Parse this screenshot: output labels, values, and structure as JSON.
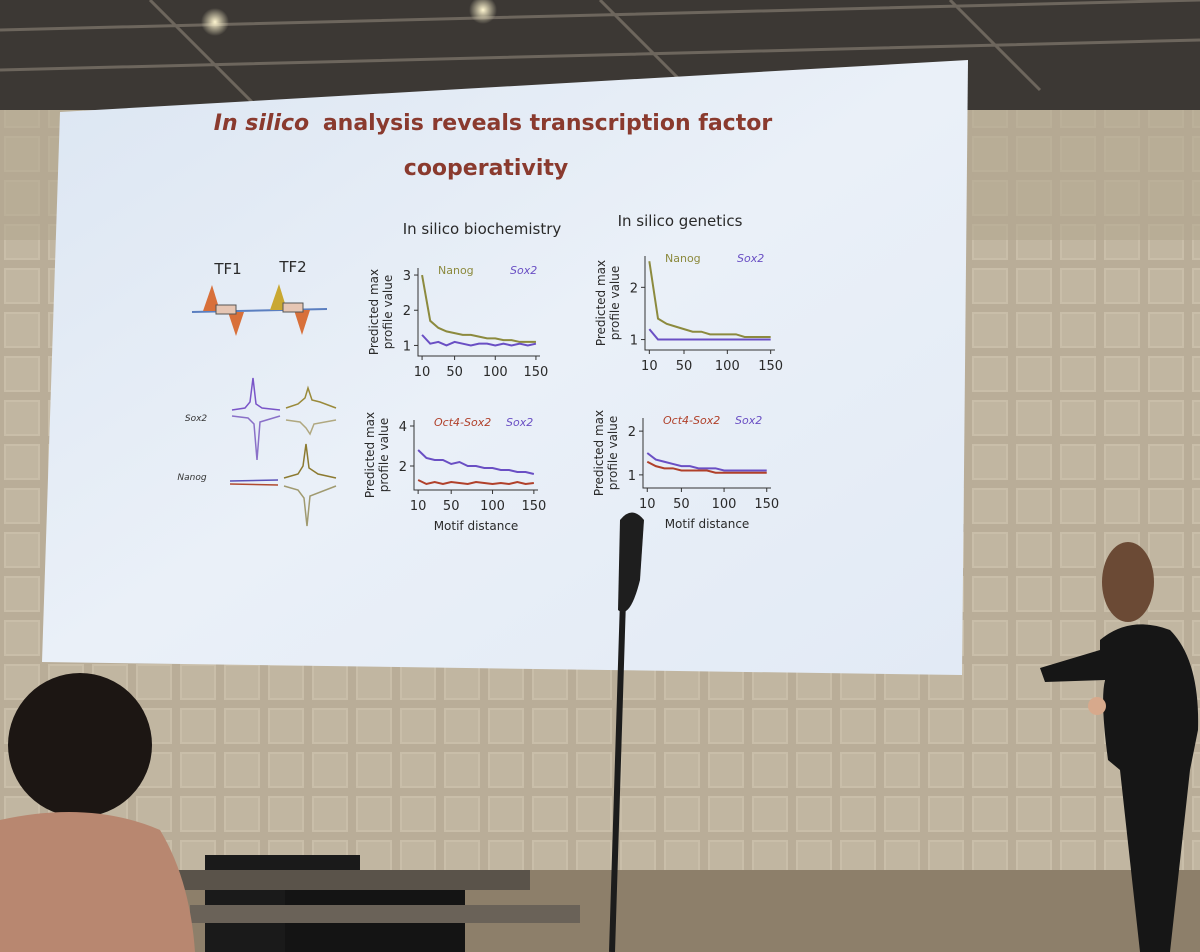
{
  "slide": {
    "title": {
      "italic": "In silico",
      "line1": "analysis reveals transcription factor",
      "line2": "cooperativity"
    },
    "headings": [
      "In silico biochemistry",
      "In silico genetics"
    ],
    "diagram": {
      "tf_labels": [
        "TF1",
        "TF2"
      ],
      "row_labels": [
        "Sox2",
        "Nanog"
      ]
    },
    "charts": [
      {
        "type": "line",
        "ylabel": [
          "Predicted max",
          "profile value"
        ],
        "x": [
          10,
          20,
          30,
          40,
          50,
          60,
          70,
          80,
          90,
          100,
          110,
          120,
          130,
          140,
          150
        ],
        "xlim": [
          5,
          155
        ],
        "xticks": [
          10,
          50,
          100,
          150
        ],
        "ylim": [
          0.7,
          3.2
        ],
        "yticks": [
          1,
          2,
          3
        ],
        "series": [
          {
            "name": "Nanog",
            "color": "#8c8a3e",
            "values": [
              3.0,
              1.7,
              1.5,
              1.4,
              1.35,
              1.3,
              1.3,
              1.25,
              1.2,
              1.2,
              1.15,
              1.15,
              1.1,
              1.1,
              1.1
            ]
          },
          {
            "name": "Sox2",
            "color": "#6a4fc4",
            "values": [
              1.3,
              1.05,
              1.1,
              1.0,
              1.1,
              1.05,
              1.0,
              1.05,
              1.05,
              1.0,
              1.05,
              1.0,
              1.05,
              1.0,
              1.05
            ]
          }
        ]
      },
      {
        "type": "line",
        "ylabel": [
          "Predicted max",
          "profile value"
        ],
        "x": [
          10,
          20,
          30,
          40,
          50,
          60,
          70,
          80,
          90,
          100,
          110,
          120,
          130,
          140,
          150
        ],
        "xlim": [
          5,
          155
        ],
        "xticks": [
          10,
          50,
          100,
          150
        ],
        "ylim": [
          0.8,
          2.6
        ],
        "yticks": [
          1,
          2
        ],
        "series": [
          {
            "name": "Nanog",
            "color": "#8c8a3e",
            "values": [
              2.5,
              1.4,
              1.3,
              1.25,
              1.2,
              1.15,
              1.15,
              1.1,
              1.1,
              1.1,
              1.1,
              1.05,
              1.05,
              1.05,
              1.05
            ]
          },
          {
            "name": "Sox2",
            "color": "#6a4fc4",
            "values": [
              1.2,
              1.0,
              1.0,
              1.0,
              1.0,
              1.0,
              1.0,
              1.0,
              1.0,
              1.0,
              1.0,
              1.0,
              1.0,
              1.0,
              1.0
            ]
          }
        ]
      },
      {
        "type": "line",
        "ylabel": [
          "Predicted max",
          "profile value"
        ],
        "xlabel": "Motif distance",
        "x": [
          10,
          20,
          30,
          40,
          50,
          60,
          70,
          80,
          90,
          100,
          110,
          120,
          130,
          140,
          150
        ],
        "xlim": [
          5,
          155
        ],
        "xticks": [
          10,
          50,
          100,
          150
        ],
        "ylim": [
          0.8,
          4.3
        ],
        "yticks": [
          2,
          4
        ],
        "series": [
          {
            "name": "Oct4-Sox2",
            "color": "#b0402a",
            "values": [
              1.3,
              1.1,
              1.2,
              1.1,
              1.2,
              1.15,
              1.1,
              1.2,
              1.15,
              1.1,
              1.15,
              1.1,
              1.2,
              1.1,
              1.15
            ]
          },
          {
            "name": "Sox2",
            "color": "#6a4fc4",
            "values": [
              2.8,
              2.4,
              2.3,
              2.3,
              2.1,
              2.2,
              2.0,
              2.0,
              1.9,
              1.9,
              1.8,
              1.8,
              1.7,
              1.7,
              1.6
            ]
          }
        ]
      },
      {
        "type": "line",
        "ylabel": [
          "Predicted max",
          "profile value"
        ],
        "xlabel": "Motif distance",
        "x": [
          10,
          20,
          30,
          40,
          50,
          60,
          70,
          80,
          90,
          100,
          110,
          120,
          130,
          140,
          150
        ],
        "xlim": [
          5,
          155
        ],
        "xticks": [
          10,
          50,
          100,
          150
        ],
        "ylim": [
          0.7,
          2.3
        ],
        "yticks": [
          1,
          2
        ],
        "series": [
          {
            "name": "Oct4-Sox2",
            "color": "#b0402a",
            "values": [
              1.3,
              1.2,
              1.15,
              1.15,
              1.1,
              1.1,
              1.1,
              1.1,
              1.05,
              1.05,
              1.05,
              1.05,
              1.05,
              1.05,
              1.05
            ]
          },
          {
            "name": "Sox2",
            "color": "#6a4fc4",
            "values": [
              1.5,
              1.35,
              1.3,
              1.25,
              1.2,
              1.2,
              1.15,
              1.15,
              1.15,
              1.1,
              1.1,
              1.1,
              1.1,
              1.1,
              1.1
            ]
          }
        ]
      }
    ]
  }
}
